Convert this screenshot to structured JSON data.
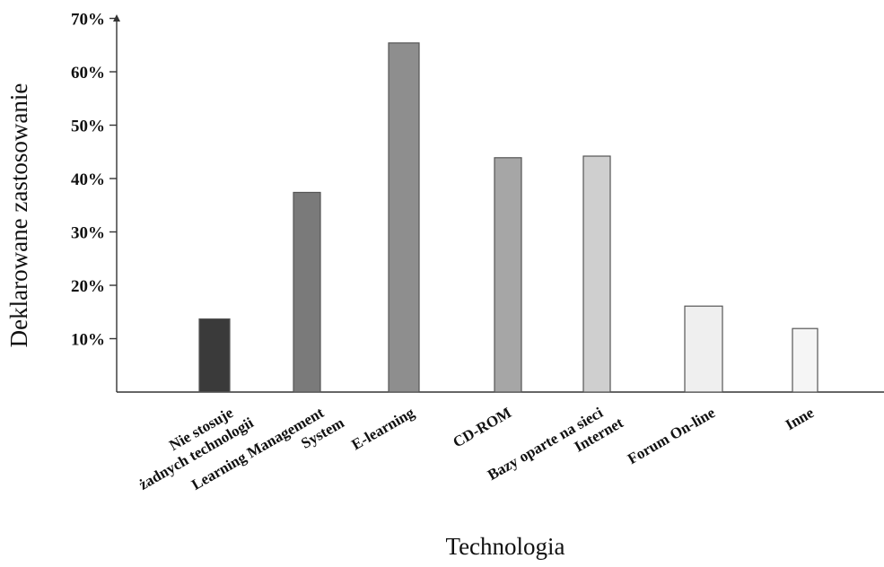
{
  "chart_data": {
    "type": "bar",
    "xlabel": "Technologia",
    "ylabel": "Deklarowane zastosowanie",
    "ylim": [
      0,
      72
    ],
    "yticks": [
      10,
      20,
      30,
      40,
      50,
      60,
      70
    ],
    "ytick_labels": [
      "10%",
      "20%",
      "30%",
      "40%",
      "50%",
      "60%",
      "70%"
    ],
    "categories": [
      [
        "Nie stosuje",
        "żadnych technologii"
      ],
      [
        "Learning Management",
        "System"
      ],
      [
        "E-learning"
      ],
      [
        "CD-ROM"
      ],
      [
        "Bazy oparte na sieci",
        "Internet"
      ],
      [
        "Forum On-line"
      ],
      [
        "Inne"
      ]
    ],
    "values": [
      13.7,
      37.4,
      65.4,
      43.9,
      44.2,
      16.1,
      11.9
    ],
    "colors": [
      "#3a3a3a",
      "#7a7a7a",
      "#8e8e8e",
      "#a6a6a6",
      "#cfcfcf",
      "#efefef",
      "#f5f5f5"
    ],
    "grid": false,
    "legend": "none"
  }
}
